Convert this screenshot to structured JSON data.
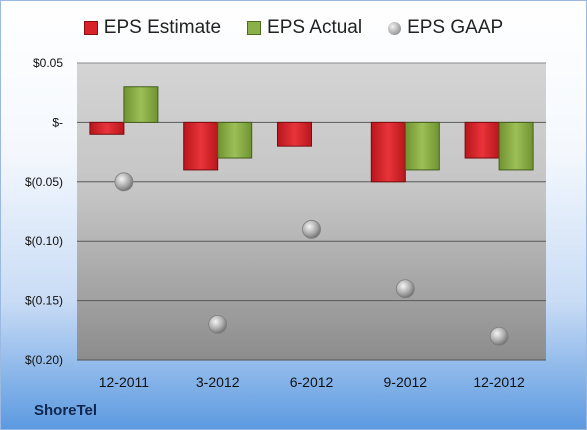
{
  "company": "ShoreTel",
  "colors": {
    "estimate": "#d9232a",
    "actual": "#8cb048",
    "gaap": "#a8a8a8"
  },
  "chart_data": {
    "type": "bar",
    "categories": [
      "12-2011",
      "3-2012",
      "6-2012",
      "9-2012",
      "12-2012"
    ],
    "series": [
      {
        "name": "EPS Estimate",
        "kind": "bar",
        "values": [
          -0.01,
          -0.04,
          -0.02,
          -0.05,
          -0.03
        ]
      },
      {
        "name": "EPS Actual",
        "kind": "bar",
        "values": [
          0.03,
          -0.03,
          null,
          -0.04,
          -0.04
        ]
      },
      {
        "name": "EPS GAAP",
        "kind": "scatter",
        "values": [
          -0.05,
          -0.17,
          -0.09,
          -0.14,
          -0.18
        ]
      }
    ],
    "ylim": [
      -0.2,
      0.05
    ],
    "yticks": [
      0.05,
      0,
      -0.05,
      -0.1,
      -0.15,
      -0.2
    ],
    "ytick_labels": [
      "$0.05",
      "$-",
      "$(0.05)",
      "$(0.10)",
      "$(0.15)",
      "$(0.20)"
    ],
    "grid": true,
    "legend_position": "top"
  }
}
